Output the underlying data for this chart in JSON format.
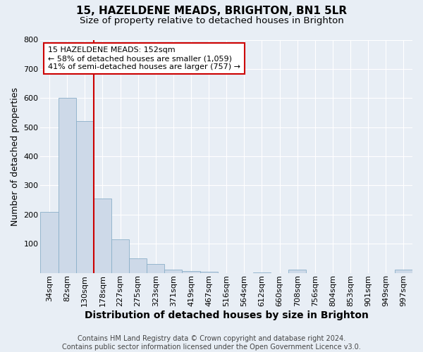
{
  "title": "15, HAZELDENE MEADS, BRIGHTON, BN1 5LR",
  "subtitle": "Size of property relative to detached houses in Brighton",
  "xlabel": "Distribution of detached houses by size in Brighton",
  "ylabel": "Number of detached properties",
  "categories": [
    "34sqm",
    "82sqm",
    "130sqm",
    "178sqm",
    "227sqm",
    "275sqm",
    "323sqm",
    "371sqm",
    "419sqm",
    "467sqm",
    "516sqm",
    "564sqm",
    "612sqm",
    "660sqm",
    "708sqm",
    "756sqm",
    "804sqm",
    "853sqm",
    "901sqm",
    "949sqm",
    "997sqm"
  ],
  "values": [
    210,
    600,
    520,
    255,
    115,
    50,
    30,
    10,
    5,
    3,
    0,
    0,
    2,
    0,
    10,
    0,
    0,
    0,
    0,
    0,
    10
  ],
  "bar_color": "#cdd9e8",
  "bar_edge_color": "#8aafc8",
  "vline_x": 2.5,
  "vline_color": "#cc0000",
  "annotation_text": "15 HAZELDENE MEADS: 152sqm\n← 58% of detached houses are smaller (1,059)\n41% of semi-detached houses are larger (757) →",
  "annotation_box_color": "#ffffff",
  "annotation_box_edge_color": "#cc0000",
  "ylim": [
    0,
    800
  ],
  "yticks": [
    0,
    100,
    200,
    300,
    400,
    500,
    600,
    700,
    800
  ],
  "background_color": "#e8eef5",
  "plot_bg_color": "#e8eef5",
  "grid_color": "#ffffff",
  "footer_text": "Contains HM Land Registry data © Crown copyright and database right 2024.\nContains public sector information licensed under the Open Government Licence v3.0.",
  "title_fontsize": 11,
  "subtitle_fontsize": 9.5,
  "xlabel_fontsize": 10,
  "ylabel_fontsize": 9,
  "tick_fontsize": 8,
  "annotation_fontsize": 8,
  "footer_fontsize": 7
}
